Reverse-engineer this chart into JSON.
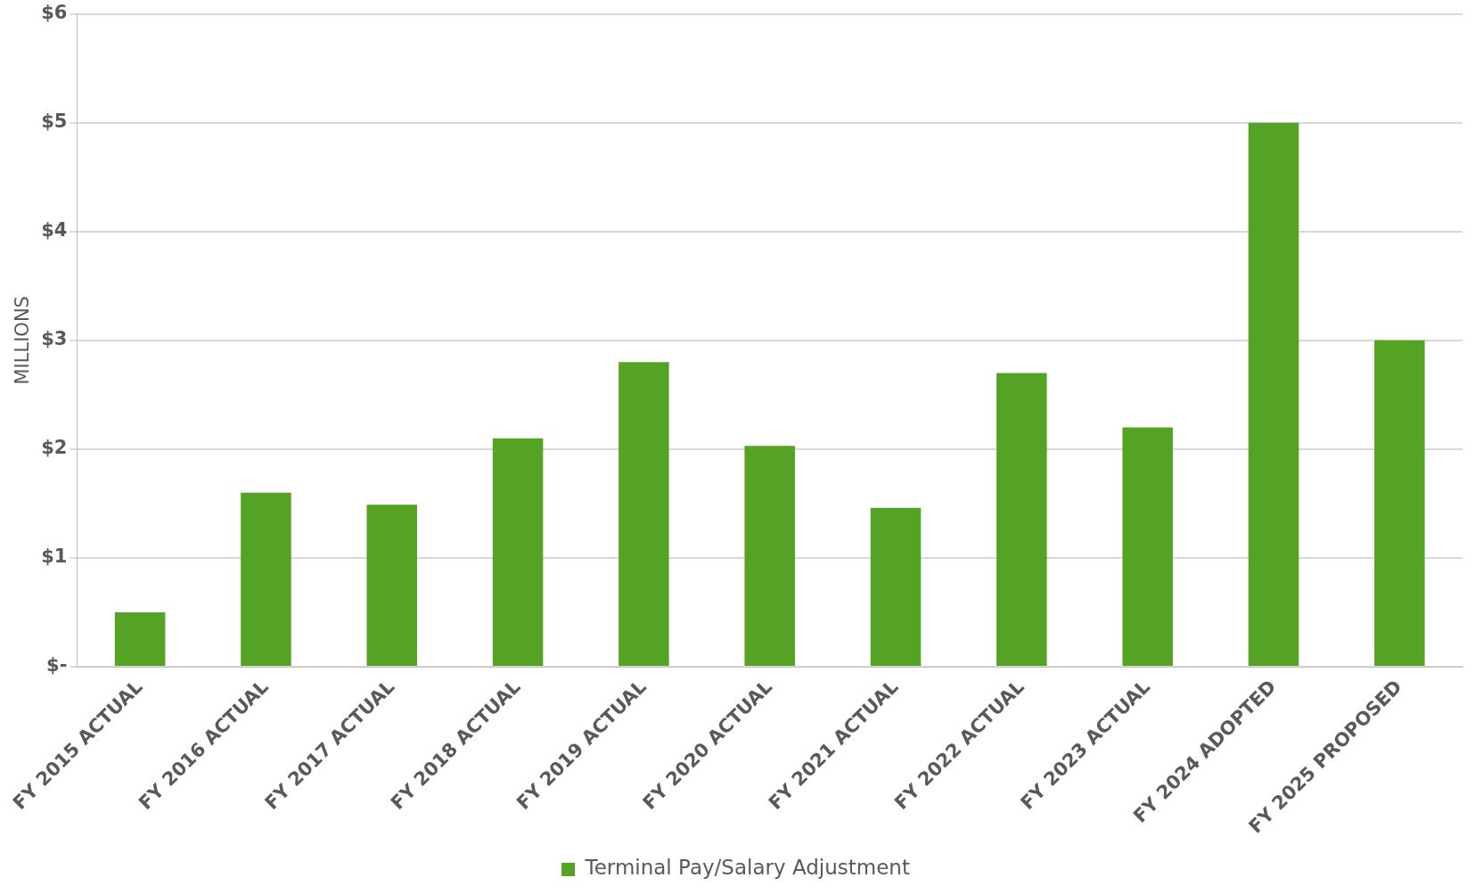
{
  "chart_data": {
    "type": "bar",
    "ylabel": "MILLIONS",
    "categories": [
      "FY 2015 ACTUAL",
      "FY 2016 ACTUAL",
      "FY 2017 ACTUAL",
      "FY 2018 ACTUAL",
      "FY 2019 ACTUAL",
      "FY 2020 ACTUAL",
      "FY 2021 ACTUAL",
      "FY 2022 ACTUAL",
      "FY 2023 ACTUAL",
      "FY 2024 ADOPTED",
      "FY 2025 PROPOSED"
    ],
    "series": [
      {
        "name": "Terminal Pay/Salary Adjustment",
        "color": "#55a324",
        "values": [
          0.5,
          1.6,
          1.49,
          2.1,
          2.8,
          2.03,
          1.46,
          2.7,
          2.2,
          5.0,
          3.0
        ]
      }
    ],
    "ylim": [
      0,
      6
    ],
    "yticks": [
      {
        "value": 0,
        "label": "$-"
      },
      {
        "value": 1,
        "label": "$1"
      },
      {
        "value": 2,
        "label": "$2"
      },
      {
        "value": 3,
        "label": "$3"
      },
      {
        "value": 4,
        "label": "$4"
      },
      {
        "value": 5,
        "label": "$5"
      },
      {
        "value": 6,
        "label": "$6"
      }
    ],
    "grid": "y",
    "legend": "bottom"
  }
}
